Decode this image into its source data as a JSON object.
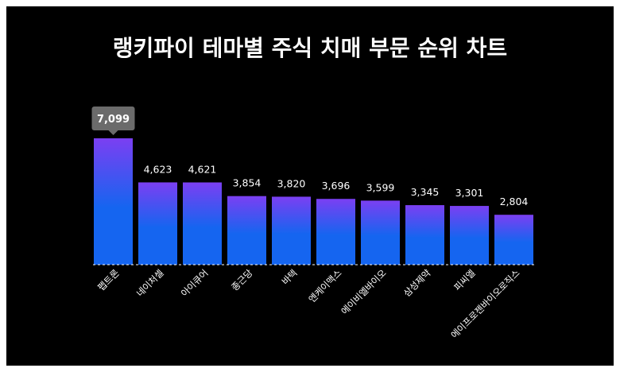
{
  "chart_data": {
    "type": "bar",
    "title": "랭키파이 테마별 주식 치매 부문 순위 차트",
    "categories": [
      "펩트론",
      "네이처셀",
      "아이큐어",
      "종근당",
      "바텍",
      "엔케이맥스",
      "에이비엘바이오",
      "삼성제약",
      "피씨엘",
      "에이프로젠바이오로직스"
    ],
    "values": [
      7099,
      4623,
      4621,
      3854,
      3820,
      3696,
      3599,
      3345,
      3301,
      2804
    ],
    "value_labels": [
      "7,099",
      "4,623",
      "4,621",
      "3,854",
      "3,820",
      "3,696",
      "3,599",
      "3,345",
      "3,301",
      "2,804"
    ],
    "highlight_index": 0,
    "ylim": [
      0,
      7099
    ],
    "grid": false,
    "legend": "none",
    "colors": {
      "background": "#000000",
      "bar_top": "#7b3ff2",
      "bar_bottom": "#1565f0",
      "tooltip": "#6b6b6b",
      "baseline": "#ffffff",
      "text": "#ffffff"
    }
  }
}
